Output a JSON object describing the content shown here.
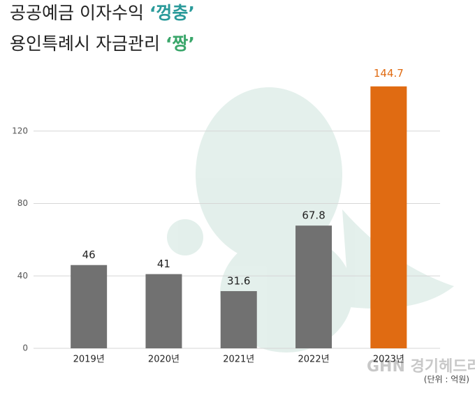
{
  "chart_data": {
    "type": "bar",
    "title": [
      [
        "공공예금 이자수익 ",
        "‘껑충’"
      ],
      [
        "용인특례시 자금관리 ",
        "‘짱’"
      ]
    ],
    "title_accent_colors": [
      "#2a9a9a",
      "#3aa66a"
    ],
    "categories": [
      "2019년",
      "2020년",
      "2021년",
      "2022년",
      "2023년"
    ],
    "values": [
      46,
      41,
      31.6,
      67.8,
      144.7
    ],
    "color": "#717171",
    "colors": [
      "#717171",
      "#717171",
      "#717171",
      "#717171",
      "#e06b12"
    ],
    "ylim": [
      0,
      150
    ],
    "yticks": [
      0,
      40,
      80,
      120
    ],
    "grid": true,
    "unit_note": "(단위 : 억원)",
    "watermark": "GHN 경기헤드라인"
  }
}
